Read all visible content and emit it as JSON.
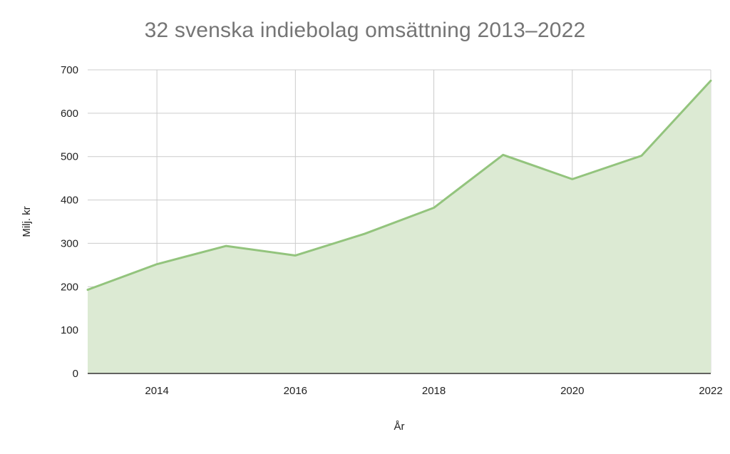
{
  "chart_data": {
    "type": "area",
    "title": "32 svenska indiebolag omsättning 2013–2022",
    "xlabel": "År",
    "ylabel": "Milj. kr",
    "x": [
      2013,
      2014,
      2015,
      2016,
      2017,
      2018,
      2019,
      2020,
      2021,
      2022
    ],
    "series": [
      {
        "values": [
          193,
          252,
          294,
          272,
          322,
          382,
          504,
          448,
          502,
          675
        ]
      }
    ],
    "xlim": [
      2013,
      2022
    ],
    "ylim": [
      0,
      700
    ],
    "x_ticks": [
      "2014",
      "2016",
      "2018",
      "2020",
      "2022"
    ],
    "y_ticks": [
      "0",
      "100",
      "200",
      "300",
      "400",
      "500",
      "600",
      "700"
    ],
    "grid": true,
    "legend": "none",
    "colors": {
      "line": "#93c47d",
      "fill": "#dcead3",
      "grid": "#cccccc",
      "title": "#757575"
    }
  }
}
